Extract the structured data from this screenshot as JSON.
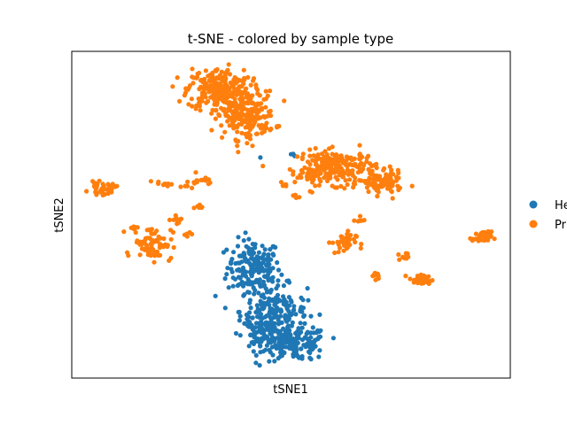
{
  "chart_data": {
    "type": "scatter",
    "title": "t-SNE - colored by sample type",
    "xlabel": "tSNE1",
    "ylabel": "tSNE2",
    "xlim": [
      0,
      100
    ],
    "ylim": [
      0,
      100
    ],
    "xticks": [],
    "yticks": [],
    "grid": false,
    "legend_placement": "right",
    "series": [
      {
        "name": "He",
        "color": "#1f77b4",
        "clusters": [
          {
            "cx": 41.5,
            "cy": 34.0,
            "sx": 3.0,
            "sy": 4.2,
            "n": 170
          },
          {
            "cx": 46.0,
            "cy": 20.5,
            "sx": 3.8,
            "sy": 4.0,
            "n": 190
          },
          {
            "cx": 51.0,
            "cy": 10.5,
            "sx": 3.6,
            "sy": 2.6,
            "n": 150
          },
          {
            "cx": 43.5,
            "cy": 13.5,
            "sx": 2.6,
            "sy": 2.2,
            "n": 70
          }
        ],
        "points": [
          [
            43.0,
            67.5
          ],
          [
            50.0,
            68.5
          ],
          [
            50.8,
            68.0
          ],
          [
            50.5,
            68.6
          ]
        ]
      },
      {
        "name": "Pr",
        "color": "#ff7f0e",
        "clusters": [
          {
            "cx": 33.5,
            "cy": 88.5,
            "sx": 3.6,
            "sy": 3.2,
            "n": 240
          },
          {
            "cx": 39.5,
            "cy": 80.5,
            "sx": 3.4,
            "sy": 3.6,
            "n": 210
          },
          {
            "cx": 60.5,
            "cy": 64.5,
            "sx": 4.5,
            "sy": 2.6,
            "n": 220
          },
          {
            "cx": 70.5,
            "cy": 59.5,
            "sx": 2.4,
            "sy": 1.8,
            "n": 90
          },
          {
            "cx": 54.5,
            "cy": 62.5,
            "sx": 1.8,
            "sy": 1.2,
            "n": 25
          },
          {
            "cx": 7.0,
            "cy": 58.0,
            "sx": 1.5,
            "sy": 0.9,
            "n": 40
          },
          {
            "cx": 18.5,
            "cy": 41.5,
            "sx": 2.2,
            "sy": 2.6,
            "n": 80
          },
          {
            "cx": 62.0,
            "cy": 41.5,
            "sx": 1.4,
            "sy": 1.7,
            "n": 40
          },
          {
            "cx": 93.5,
            "cy": 43.0,
            "sx": 1.1,
            "sy": 0.9,
            "n": 35
          },
          {
            "cx": 79.5,
            "cy": 30.0,
            "sx": 1.3,
            "sy": 0.8,
            "n": 35
          },
          {
            "cx": 76.0,
            "cy": 37.5,
            "sx": 0.8,
            "sy": 0.9,
            "n": 12
          },
          {
            "cx": 24.5,
            "cy": 48.5,
            "sx": 0.9,
            "sy": 0.6,
            "n": 12
          },
          {
            "cx": 20.5,
            "cy": 59.5,
            "sx": 1.0,
            "sy": 0.4,
            "n": 10
          },
          {
            "cx": 27.5,
            "cy": 60.5,
            "sx": 0.8,
            "sy": 1.3,
            "n": 12
          },
          {
            "cx": 30.5,
            "cy": 60.0,
            "sx": 0.6,
            "sy": 0.8,
            "n": 8
          },
          {
            "cx": 29.0,
            "cy": 52.5,
            "sx": 0.7,
            "sy": 0.4,
            "n": 6
          },
          {
            "cx": 69.5,
            "cy": 31.5,
            "sx": 0.6,
            "sy": 0.6,
            "n": 8
          },
          {
            "cx": 26.5,
            "cy": 44.0,
            "sx": 0.5,
            "sy": 0.5,
            "n": 5
          },
          {
            "cx": 65.5,
            "cy": 48.5,
            "sx": 0.6,
            "sy": 0.5,
            "n": 6
          },
          {
            "cx": 48.5,
            "cy": 59.0,
            "sx": 0.6,
            "sy": 0.4,
            "n": 4
          },
          {
            "cx": 51.0,
            "cy": 55.5,
            "sx": 0.5,
            "sy": 0.4,
            "n": 4
          },
          {
            "cx": 14.0,
            "cy": 46.0,
            "sx": 0.5,
            "sy": 0.4,
            "n": 4
          }
        ],
        "points": []
      }
    ]
  }
}
